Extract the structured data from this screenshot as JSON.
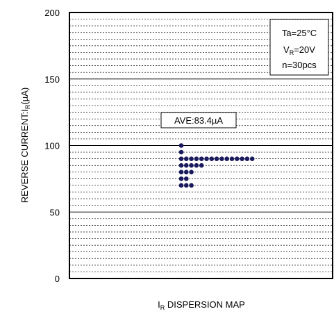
{
  "chart_data": {
    "type": "scatter",
    "ylabel": "REVERSE CURRENT:I",
    "ylabel_sub": "R",
    "ylabel_unit": "(µA)",
    "xlabel": "I",
    "xlabel_sub": "R",
    "xlabel_rest": " DISPERSION MAP",
    "ylim": [
      0,
      200
    ],
    "yticks": [
      0,
      50,
      100,
      150,
      200
    ],
    "minor_grid_step": 5,
    "grid": true,
    "conditions": {
      "line1": "Ta=25°C",
      "line2_main": "V",
      "line2_sub": "R",
      "line2_rest": "=20V",
      "line3": "n=30pcs"
    },
    "average_label": "AVE:83.4µA",
    "average_value": 83.4,
    "dot_color": "#1a1a5e",
    "bins": [
      {
        "value": 100,
        "count": 1
      },
      {
        "value": 95,
        "count": 1
      },
      {
        "value": 90,
        "count": 15
      },
      {
        "value": 85,
        "count": 5
      },
      {
        "value": 80,
        "count": 3
      },
      {
        "value": 75,
        "count": 2
      },
      {
        "value": 70,
        "count": 3
      }
    ]
  }
}
